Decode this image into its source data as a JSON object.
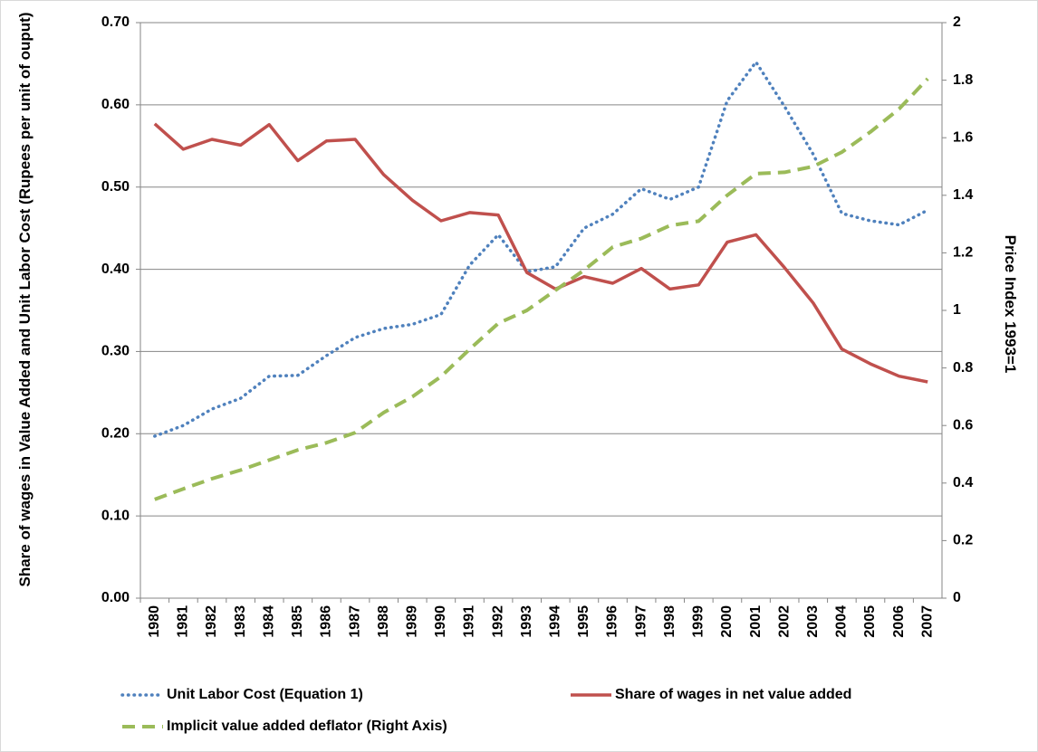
{
  "chart_data": {
    "type": "line",
    "ylabel": "Share of wages in Value Added and Unit Labor Cost (Rupees per unit of ouput)",
    "y2label": "Price Index 1993=1",
    "categories": [
      "1980",
      "1981",
      "1982",
      "1983",
      "1984",
      "1985",
      "1986",
      "1987",
      "1988",
      "1989",
      "1990",
      "1991",
      "1992",
      "1993",
      "1994",
      "1995",
      "1996",
      "1997",
      "1998",
      "1999",
      "2000",
      "2001",
      "2002",
      "2003",
      "2004",
      "2005",
      "2006",
      "2007"
    ],
    "series": [
      {
        "name": "Unit Labor Cost (Equation 1)",
        "color": "#4f81bd",
        "dash": "dotted",
        "axis": "y",
        "values": [
          0.197,
          0.21,
          0.23,
          0.243,
          0.27,
          0.271,
          0.295,
          0.317,
          0.328,
          0.333,
          0.345,
          0.405,
          0.442,
          0.397,
          0.403,
          0.45,
          0.467,
          0.498,
          0.485,
          0.5,
          0.605,
          0.652,
          0.598,
          0.54,
          0.468,
          0.459,
          0.454,
          0.472
        ]
      },
      {
        "name": "Share of wages in net value added",
        "color": "#c0504d",
        "dash": "solid",
        "axis": "y",
        "values": [
          0.577,
          0.546,
          0.558,
          0.551,
          0.576,
          0.532,
          0.556,
          0.558,
          0.515,
          0.484,
          0.459,
          0.469,
          0.466,
          0.396,
          0.376,
          0.391,
          0.383,
          0.401,
          0.376,
          0.381,
          0.433,
          0.442,
          0.402,
          0.359,
          0.303,
          0.285,
          0.27,
          0.263
        ]
      },
      {
        "name": "Implicit value added deflator (Right Axis)",
        "color": "#9bbb59",
        "dash": "dashed",
        "axis": "y2",
        "values": [
          0.343,
          0.38,
          0.415,
          0.445,
          0.48,
          0.515,
          0.54,
          0.575,
          0.645,
          0.7,
          0.77,
          0.865,
          0.955,
          1.0,
          1.07,
          1.14,
          1.22,
          1.25,
          1.295,
          1.31,
          1.4,
          1.475,
          1.48,
          1.5,
          1.55,
          1.62,
          1.7,
          1.805
        ]
      }
    ],
    "ylim": [
      0,
      0.7
    ],
    "yticks": [
      {
        "value": 0,
        "label": "0.00"
      },
      {
        "value": 0.1,
        "label": "0.10"
      },
      {
        "value": 0.2,
        "label": "0.20"
      },
      {
        "value": 0.3,
        "label": "0.30"
      },
      {
        "value": 0.4,
        "label": "0.40"
      },
      {
        "value": 0.5,
        "label": "0.50"
      },
      {
        "value": 0.6,
        "label": "0.60"
      },
      {
        "value": 0.7,
        "label": "0.70"
      }
    ],
    "y2lim": [
      0,
      2
    ],
    "y2ticks": [
      0,
      0.2,
      0.4,
      0.6,
      0.8,
      1,
      1.2,
      1.4,
      1.6,
      1.8,
      2
    ],
    "grid": true,
    "legend": "bottom"
  }
}
